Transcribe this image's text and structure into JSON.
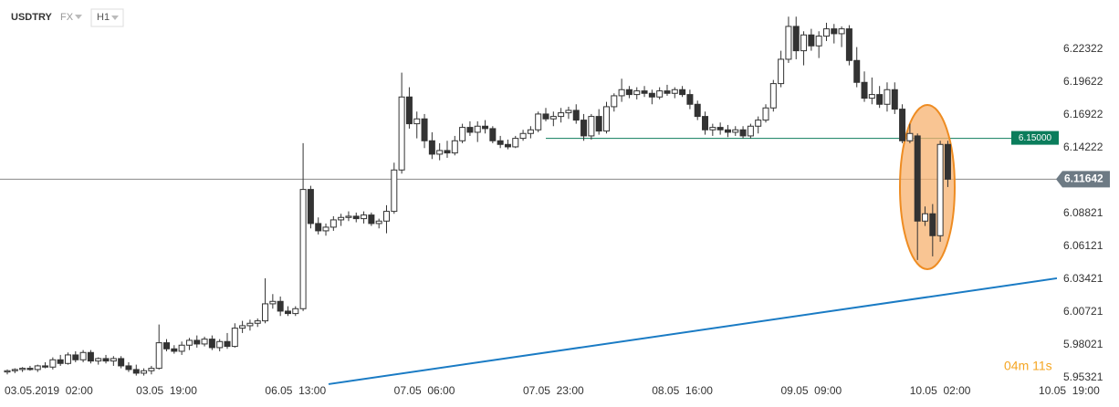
{
  "chart_data": {
    "type": "candlestick",
    "symbol": "USDTRY",
    "market": "FX",
    "interval": "H1",
    "categories": [
      null,
      null,
      null,
      null,
      "03.05.2019  02:00",
      null,
      null,
      null,
      null,
      null,
      null,
      null,
      null,
      null,
      null,
      null,
      null,
      null,
      null,
      null,
      null,
      "03.05  19:00",
      null,
      null,
      null,
      null,
      null,
      null,
      null,
      null,
      null,
      null,
      null,
      null,
      null,
      null,
      null,
      null,
      "06.05  13:00",
      null,
      null,
      null,
      null,
      null,
      null,
      null,
      null,
      null,
      null,
      null,
      null,
      null,
      null,
      null,
      null,
      "07.05  06:00",
      null,
      null,
      null,
      null,
      null,
      null,
      null,
      null,
      null,
      null,
      null,
      null,
      null,
      null,
      null,
      null,
      "07.05  23:00",
      null,
      null,
      null,
      null,
      null,
      null,
      null,
      null,
      null,
      null,
      null,
      null,
      null,
      null,
      null,
      null,
      "08.05  16:00",
      null,
      null,
      null,
      null,
      null,
      null,
      null,
      null,
      null,
      null,
      null,
      null,
      null,
      null,
      null,
      null,
      "09.05  09:00",
      null,
      null,
      null,
      null,
      null,
      null,
      null,
      null,
      null,
      null,
      null,
      null,
      null,
      null,
      null,
      null,
      "10.05  02:00",
      null,
      null,
      null,
      null,
      null,
      null,
      null,
      null,
      null,
      null,
      null,
      null,
      null,
      null,
      null,
      null,
      "10.05  19:00"
    ],
    "ohlc": [
      [
        5.958,
        5.96,
        5.956,
        5.959
      ],
      [
        5.959,
        5.961,
        5.957,
        5.96
      ],
      [
        5.96,
        5.962,
        5.958,
        5.961
      ],
      [
        5.961,
        5.963,
        5.959,
        5.96
      ],
      [
        5.96,
        5.964,
        5.958,
        5.963
      ],
      [
        5.963,
        5.966,
        5.961,
        5.962
      ],
      [
        5.962,
        5.97,
        5.96,
        5.968
      ],
      [
        5.968,
        5.972,
        5.963,
        5.965
      ],
      [
        5.965,
        5.974,
        5.964,
        5.972
      ],
      [
        5.972,
        5.975,
        5.966,
        5.968
      ],
      [
        5.968,
        5.976,
        5.966,
        5.974
      ],
      [
        5.974,
        5.976,
        5.965,
        5.967
      ],
      [
        5.967,
        5.97,
        5.964,
        5.969
      ],
      [
        5.969,
        5.972,
        5.965,
        5.967
      ],
      [
        5.967,
        5.971,
        5.963,
        5.969
      ],
      [
        5.969,
        5.971,
        5.961,
        5.963
      ],
      [
        5.963,
        5.966,
        5.958,
        5.96
      ],
      [
        5.96,
        5.964,
        5.955,
        5.957
      ],
      [
        5.957,
        5.961,
        5.955,
        5.959
      ],
      [
        5.959,
        5.963,
        5.956,
        5.961
      ],
      [
        5.961,
        5.997,
        5.96,
        5.982
      ],
      [
        5.982,
        5.985,
        5.975,
        5.977
      ],
      [
        5.977,
        5.98,
        5.973,
        5.975
      ],
      [
        5.975,
        5.983,
        5.972,
        5.98
      ],
      [
        5.98,
        5.986,
        5.976,
        5.984
      ],
      [
        5.984,
        5.988,
        5.978,
        5.981
      ],
      [
        5.981,
        5.987,
        5.979,
        5.985
      ],
      [
        5.985,
        5.988,
        5.976,
        5.978
      ],
      [
        5.978,
        5.985,
        5.975,
        5.983
      ],
      [
        5.983,
        5.99,
        5.977,
        5.979
      ],
      [
        5.979,
        5.998,
        5.978,
        5.994
      ],
      [
        5.994,
        6.0,
        5.99,
        5.996
      ],
      [
        5.996,
        6.001,
        5.992,
        5.998
      ],
      [
        5.998,
        6.002,
        5.995,
        6.0
      ],
      [
        6.0,
        6.035,
        5.998,
        6.014
      ],
      [
        6.014,
        6.022,
        6.01,
        6.016
      ],
      [
        6.016,
        6.02,
        6.004,
        6.008
      ],
      [
        6.008,
        6.012,
        6.004,
        6.006
      ],
      [
        6.006,
        6.012,
        6.004,
        6.01
      ],
      [
        6.01,
        6.146,
        6.008,
        6.108
      ],
      [
        6.108,
        6.111,
        6.076,
        6.08
      ],
      [
        6.08,
        6.085,
        6.071,
        6.074
      ],
      [
        6.074,
        6.08,
        6.07,
        6.077
      ],
      [
        6.077,
        6.086,
        6.074,
        6.083
      ],
      [
        6.083,
        6.088,
        6.078,
        6.085
      ],
      [
        6.085,
        6.09,
        6.082,
        6.086
      ],
      [
        6.086,
        6.089,
        6.081,
        6.084
      ],
      [
        6.084,
        6.09,
        6.08,
        6.087
      ],
      [
        6.087,
        6.089,
        6.078,
        6.08
      ],
      [
        6.08,
        6.084,
        6.076,
        6.082
      ],
      [
        6.082,
        6.095,
        6.072,
        6.09
      ],
      [
        6.09,
        6.13,
        6.088,
        6.124
      ],
      [
        6.124,
        6.204,
        6.121,
        6.184
      ],
      [
        6.184,
        6.192,
        6.158,
        6.162
      ],
      [
        6.162,
        6.172,
        6.15,
        6.166
      ],
      [
        6.166,
        6.17,
        6.142,
        6.148
      ],
      [
        6.148,
        6.155,
        6.133,
        6.137
      ],
      [
        6.137,
        6.146,
        6.132,
        6.14
      ],
      [
        6.14,
        6.148,
        6.134,
        6.138
      ],
      [
        6.138,
        6.152,
        6.136,
        6.148
      ],
      [
        6.148,
        6.162,
        6.146,
        6.159
      ],
      [
        6.159,
        6.164,
        6.152,
        6.155
      ],
      [
        6.155,
        6.164,
        6.147,
        6.16
      ],
      [
        6.16,
        6.165,
        6.154,
        6.158
      ],
      [
        6.158,
        6.16,
        6.146,
        6.148
      ],
      [
        6.148,
        6.152,
        6.142,
        6.145
      ],
      [
        6.145,
        6.149,
        6.141,
        6.143
      ],
      [
        6.143,
        6.152,
        6.142,
        6.15
      ],
      [
        6.15,
        6.157,
        6.148,
        6.154
      ],
      [
        6.154,
        6.16,
        6.15,
        6.157
      ],
      [
        6.157,
        6.172,
        6.155,
        6.17
      ],
      [
        6.17,
        6.175,
        6.164,
        6.166
      ],
      [
        6.166,
        6.172,
        6.16,
        6.168
      ],
      [
        6.168,
        6.175,
        6.163,
        6.171
      ],
      [
        6.171,
        6.176,
        6.166,
        6.173
      ],
      [
        6.173,
        6.178,
        6.162,
        6.165
      ],
      [
        6.165,
        6.17,
        6.148,
        6.152
      ],
      [
        6.152,
        6.17,
        6.149,
        6.168
      ],
      [
        6.168,
        6.174,
        6.153,
        6.156
      ],
      [
        6.156,
        6.18,
        6.154,
        6.176
      ],
      [
        6.176,
        6.187,
        6.172,
        6.185
      ],
      [
        6.185,
        6.199,
        6.18,
        6.19
      ],
      [
        6.19,
        6.193,
        6.183,
        6.186
      ],
      [
        6.186,
        6.192,
        6.182,
        6.189
      ],
      [
        6.189,
        6.193,
        6.184,
        6.187
      ],
      [
        6.187,
        6.19,
        6.178,
        6.184
      ],
      [
        6.184,
        6.192,
        6.182,
        6.189
      ],
      [
        6.189,
        6.194,
        6.185,
        6.187
      ],
      [
        6.187,
        6.192,
        6.183,
        6.19
      ],
      [
        6.19,
        6.193,
        6.184,
        6.186
      ],
      [
        6.186,
        6.19,
        6.174,
        6.178
      ],
      [
        6.178,
        6.181,
        6.165,
        6.168
      ],
      [
        6.168,
        6.172,
        6.153,
        6.157
      ],
      [
        6.157,
        6.162,
        6.152,
        6.159
      ],
      [
        6.159,
        6.163,
        6.153,
        6.157
      ],
      [
        6.157,
        6.161,
        6.151,
        6.155
      ],
      [
        6.155,
        6.16,
        6.152,
        6.157
      ],
      [
        6.157,
        6.16,
        6.15,
        6.152
      ],
      [
        6.152,
        6.162,
        6.15,
        6.16
      ],
      [
        6.16,
        6.168,
        6.154,
        6.165
      ],
      [
        6.165,
        6.178,
        6.163,
        6.175
      ],
      [
        6.175,
        6.198,
        6.172,
        6.195
      ],
      [
        6.195,
        6.222,
        6.192,
        6.215
      ],
      [
        6.215,
        6.25,
        6.212,
        6.242
      ],
      [
        6.242,
        6.25,
        6.215,
        6.222
      ],
      [
        6.222,
        6.238,
        6.21,
        6.235
      ],
      [
        6.235,
        6.24,
        6.222,
        6.226
      ],
      [
        6.226,
        6.238,
        6.216,
        6.234
      ],
      [
        6.234,
        6.245,
        6.23,
        6.24
      ],
      [
        6.24,
        6.244,
        6.228,
        6.236
      ],
      [
        6.236,
        6.242,
        6.225,
        6.24
      ],
      [
        6.24,
        6.243,
        6.21,
        6.214
      ],
      [
        6.214,
        6.225,
        6.192,
        6.196
      ],
      [
        6.196,
        6.205,
        6.18,
        6.183
      ],
      [
        6.183,
        6.2,
        6.178,
        6.186
      ],
      [
        6.186,
        6.193,
        6.175,
        6.178
      ],
      [
        6.178,
        6.196,
        6.172,
        6.19
      ],
      [
        6.19,
        6.196,
        6.17,
        6.174
      ],
      [
        6.174,
        6.178,
        6.146,
        6.148
      ],
      [
        6.148,
        6.162,
        6.146,
        6.154
      ],
      [
        6.152,
        6.154,
        6.05,
        6.082
      ],
      [
        6.082,
        6.094,
        6.078,
        6.088
      ],
      [
        6.088,
        6.096,
        6.053,
        6.07
      ],
      [
        6.07,
        6.148,
        6.065,
        6.145
      ],
      [
        6.145,
        6.148,
        6.11,
        6.11642
      ],
      null,
      null,
      null,
      null,
      null,
      null,
      null,
      null,
      null,
      null,
      null,
      null,
      null,
      null,
      null,
      null
    ],
    "up_color": "#ffffff",
    "down_color": "#333333",
    "ylim": [
      5.9487,
      6.2637
    ],
    "yticks": [
      6.22322,
      6.19622,
      6.16922,
      6.14222,
      6.08821,
      6.06121,
      6.03421,
      6.00721,
      5.98021,
      5.95321
    ],
    "current_price": 6.11642,
    "level": {
      "value": 6.15,
      "label": "6.15000",
      "color": "#0b7d5c"
    },
    "trendline": {
      "start": 5.948,
      "end": 6.035,
      "color": "#1a7bc4"
    },
    "countdown": "04m 11s",
    "grid": false
  }
}
